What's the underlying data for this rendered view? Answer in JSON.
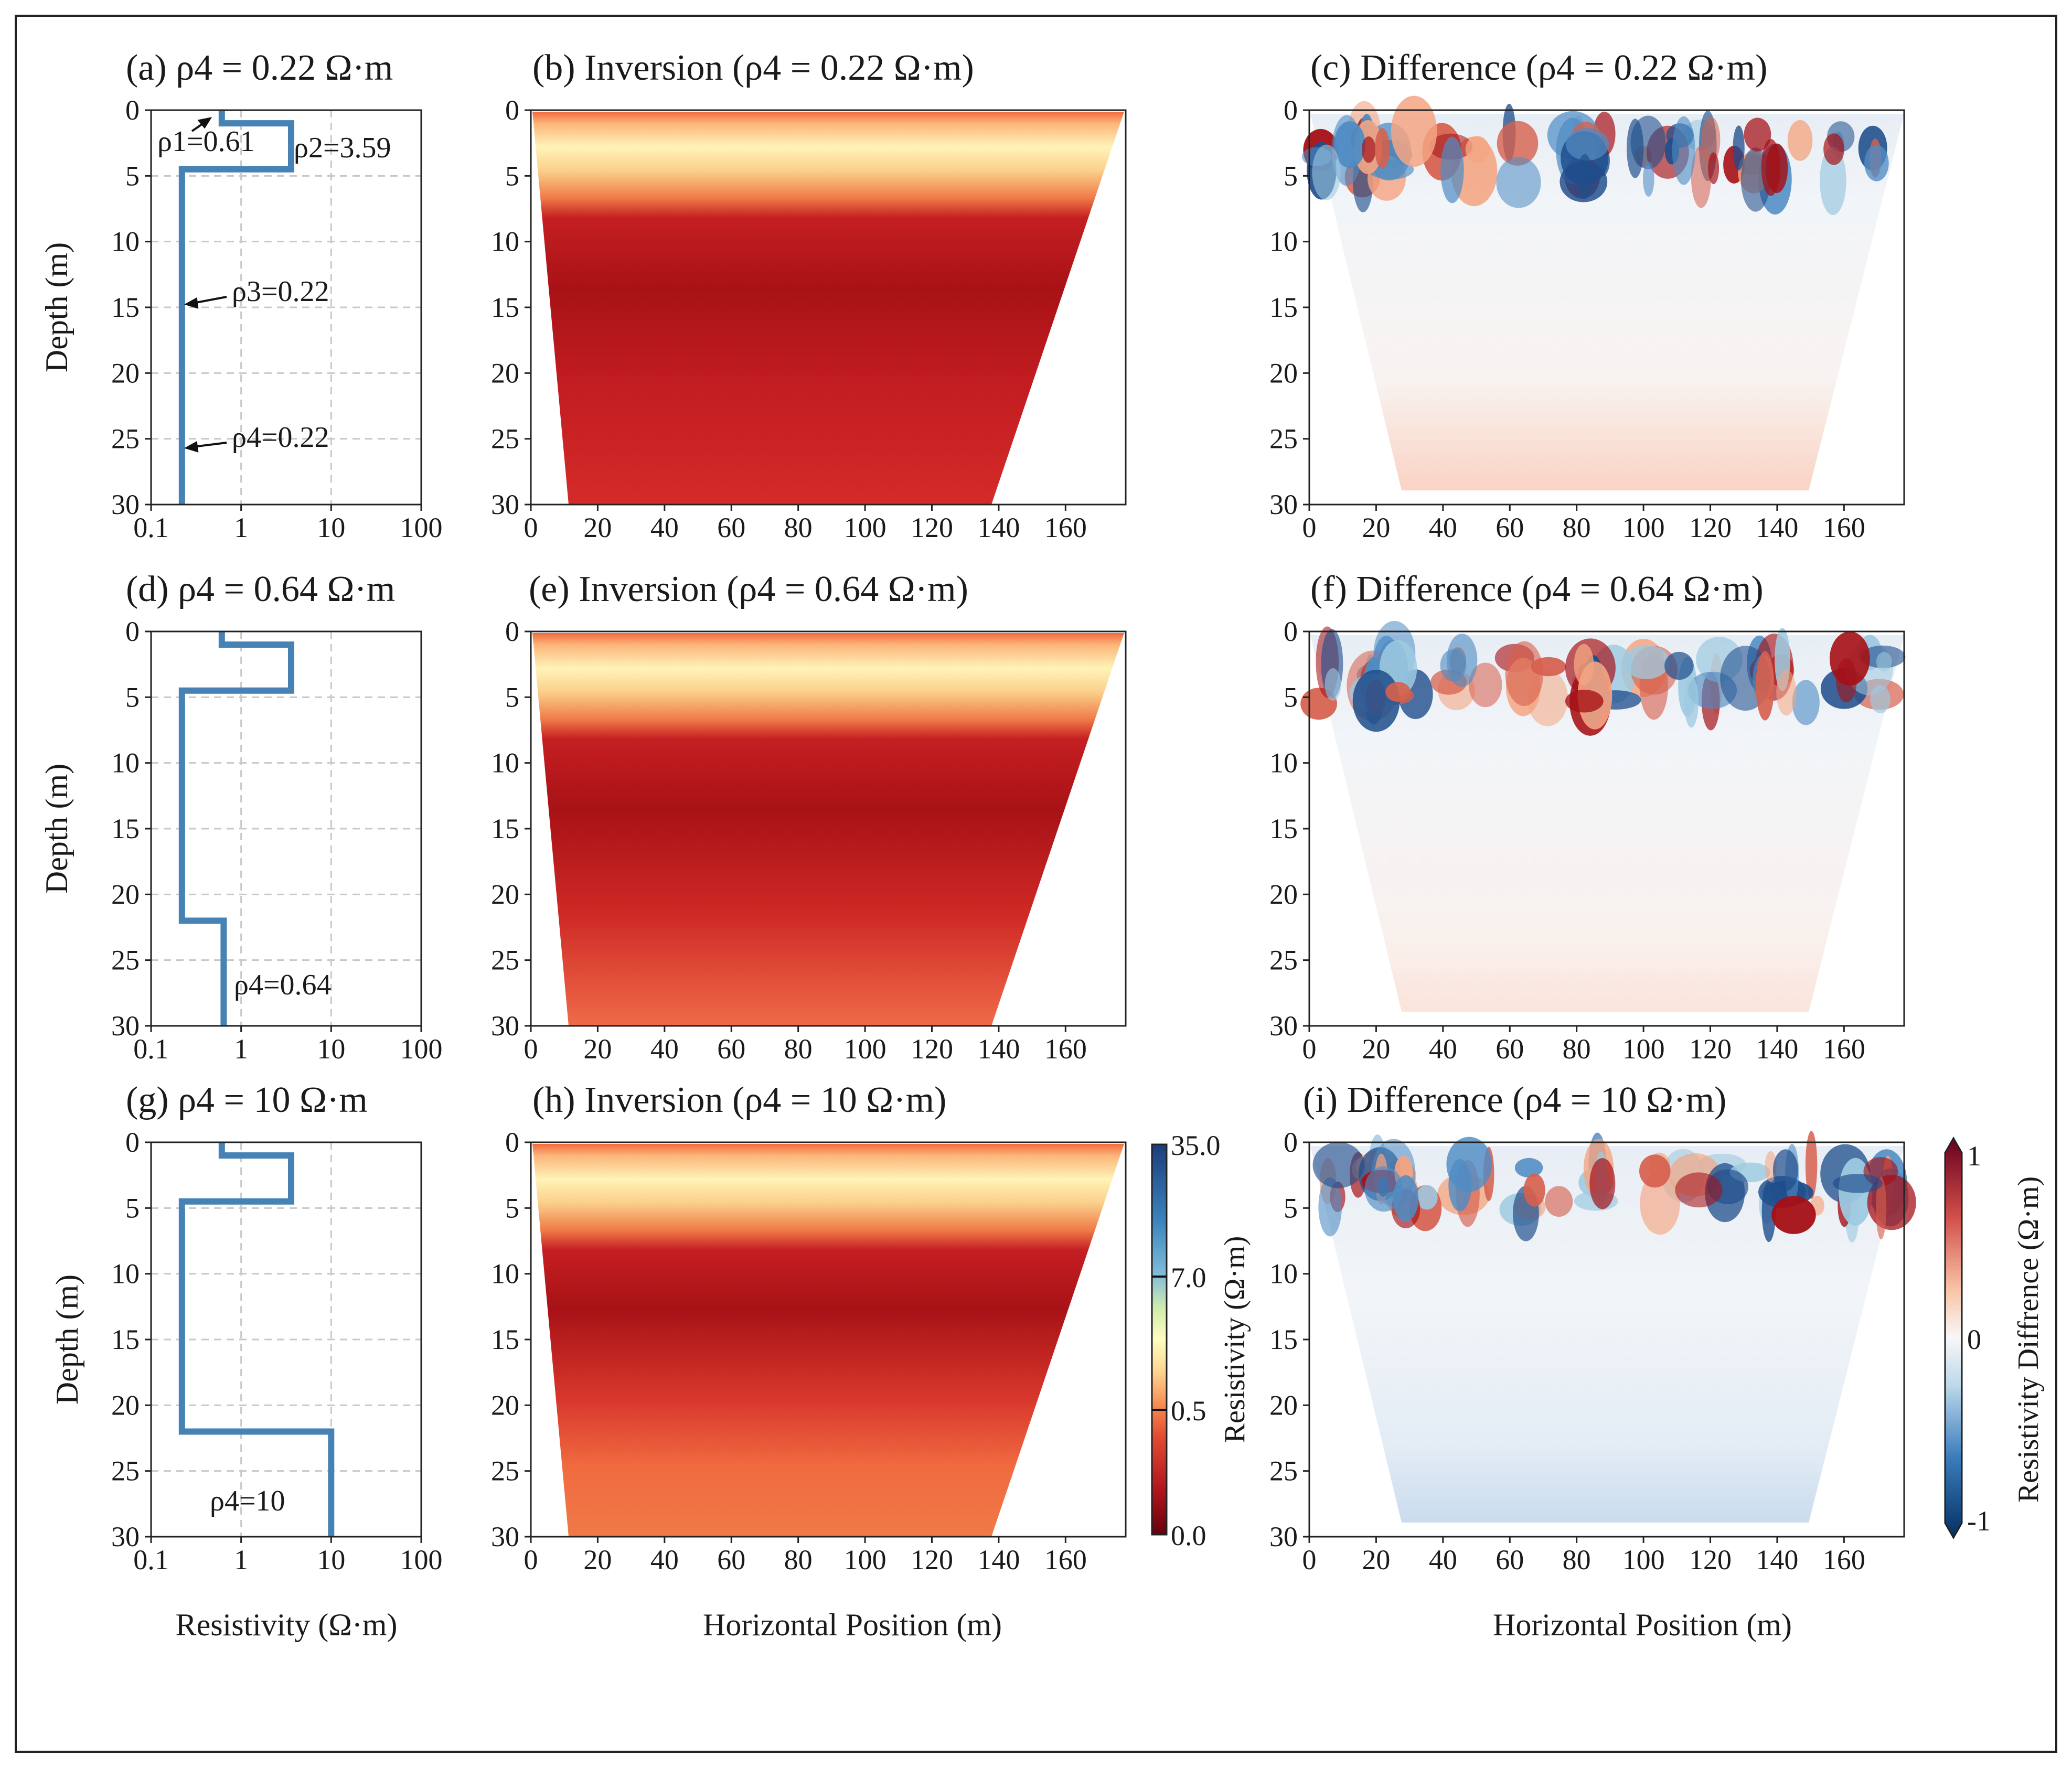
{
  "figure": {
    "xlabel_profiles": "Resistivity (Ω·m)",
    "xlabel_sections": "Horizontal Position (m)",
    "ylabel": "Depth (m)"
  },
  "chart_data": [
    {
      "type": "line",
      "title": "(a) ρ4 = 0.22 Ω·m",
      "xlabel": "",
      "ylabel": "Depth (m)",
      "x_scale": "log",
      "xlim": [
        0.1,
        100
      ],
      "ylim": [
        30,
        0
      ],
      "grid": true,
      "x_ticks": [
        "0.1",
        "1",
        "10",
        "100"
      ],
      "y_ticks": [
        "0",
        "5",
        "10",
        "15",
        "20",
        "25",
        "30"
      ],
      "series": [
        {
          "resistivity": [
            0.61,
            0.61,
            3.59,
            3.59,
            0.22,
            0.22
          ],
          "depth": [
            0,
            1,
            1,
            4.5,
            4.5,
            30
          ]
        }
      ],
      "annotations": [
        "ρ1=0.61",
        "ρ2=3.59",
        "ρ3=0.22",
        "ρ4=0.22"
      ]
    },
    {
      "type": "heatmap",
      "title": "(b) Inversion (ρ4 = 0.22 Ω·m)",
      "xlim": [
        0,
        178
      ],
      "ylim": [
        30,
        0
      ],
      "x_ticks": [
        "0",
        "20",
        "40",
        "60",
        "80",
        "100",
        "120",
        "140",
        "160"
      ],
      "y_ticks": [
        "0",
        "5",
        "10",
        "15",
        "20",
        "25",
        "30"
      ]
    },
    {
      "type": "heatmap",
      "title": "(c) Difference (ρ4 = 0.22 Ω·m)",
      "xlim": [
        0,
        178
      ],
      "ylim": [
        30,
        0
      ],
      "x_ticks": [
        "0",
        "20",
        "40",
        "60",
        "80",
        "100",
        "120",
        "140",
        "160"
      ],
      "y_ticks": [
        "0",
        "5",
        "10",
        "15",
        "20",
        "25",
        "30"
      ]
    },
    {
      "type": "line",
      "title": "(d) ρ4 = 0.64 Ω·m",
      "ylabel": "Depth (m)",
      "x_scale": "log",
      "xlim": [
        0.1,
        100
      ],
      "ylim": [
        30,
        0
      ],
      "grid": true,
      "x_ticks": [
        "0.1",
        "1",
        "10",
        "100"
      ],
      "y_ticks": [
        "0",
        "5",
        "10",
        "15",
        "20",
        "25",
        "30"
      ],
      "series": [
        {
          "resistivity": [
            0.61,
            0.61,
            3.59,
            3.59,
            0.22,
            0.22,
            0.64,
            0.64
          ],
          "depth": [
            0,
            1,
            1,
            4.5,
            4.5,
            22,
            22,
            30
          ]
        }
      ],
      "annotations": [
        "ρ4=0.64"
      ]
    },
    {
      "type": "heatmap",
      "title": "(e) Inversion (ρ4 = 0.64 Ω·m)",
      "xlim": [
        0,
        178
      ],
      "ylim": [
        30,
        0
      ],
      "x_ticks": [
        "0",
        "20",
        "40",
        "60",
        "80",
        "100",
        "120",
        "140",
        "160"
      ],
      "y_ticks": [
        "0",
        "5",
        "10",
        "15",
        "20",
        "25",
        "30"
      ]
    },
    {
      "type": "heatmap",
      "title": "(f) Difference (ρ4 = 0.64 Ω·m)",
      "xlim": [
        0,
        178
      ],
      "ylim": [
        30,
        0
      ],
      "x_ticks": [
        "0",
        "20",
        "40",
        "60",
        "80",
        "100",
        "120",
        "140",
        "160"
      ],
      "y_ticks": [
        "0",
        "5",
        "10",
        "15",
        "20",
        "25",
        "30"
      ]
    },
    {
      "type": "line",
      "title": "(g) ρ4 = 10 Ω·m",
      "xlabel": "Resistivity (Ω·m)",
      "ylabel": "Depth (m)",
      "x_scale": "log",
      "xlim": [
        0.1,
        100
      ],
      "ylim": [
        30,
        0
      ],
      "grid": true,
      "x_ticks": [
        "0.1",
        "1",
        "10",
        "100"
      ],
      "y_ticks": [
        "0",
        "5",
        "10",
        "15",
        "20",
        "25",
        "30"
      ],
      "series": [
        {
          "resistivity": [
            0.61,
            0.61,
            3.59,
            3.59,
            0.22,
            0.22,
            10,
            10
          ],
          "depth": [
            0,
            1,
            1,
            4.5,
            4.5,
            22,
            22,
            30
          ]
        }
      ],
      "annotations": [
        "ρ4=10"
      ]
    },
    {
      "type": "heatmap",
      "title": "(h) Inversion (ρ4 = 10 Ω·m)",
      "xlabel": "Horizontal Position (m)",
      "xlim": [
        0,
        178
      ],
      "ylim": [
        30,
        0
      ],
      "x_ticks": [
        "0",
        "20",
        "40",
        "60",
        "80",
        "100",
        "120",
        "140",
        "160"
      ],
      "y_ticks": [
        "0",
        "5",
        "10",
        "15",
        "20",
        "25",
        "30"
      ]
    },
    {
      "type": "heatmap",
      "title": "(i) Difference (ρ4 = 10 Ω·m)",
      "xlabel": "Horizontal Position (m)",
      "xlim": [
        0,
        178
      ],
      "ylim": [
        30,
        0
      ],
      "x_ticks": [
        "0",
        "20",
        "40",
        "60",
        "80",
        "100",
        "120",
        "140",
        "160"
      ],
      "y_ticks": [
        "0",
        "5",
        "10",
        "15",
        "20",
        "25",
        "30"
      ]
    }
  ],
  "colorbar_resistivity": {
    "label": "Resistivity (Ω·m)",
    "ticks": [
      "35.0",
      "7.0",
      "0.5",
      "0.0"
    ]
  },
  "colorbar_difference": {
    "label": "Resistivity Diffrence (Ω·m)",
    "ticks": [
      "1",
      "0",
      "-1"
    ]
  },
  "colors": {
    "profile_line": "#4682b4",
    "inv_deep": "#c21f24",
    "inv_band": "#fff3b0",
    "diff_pos": "#a50f15",
    "diff_neg": "#1f4e8c"
  }
}
